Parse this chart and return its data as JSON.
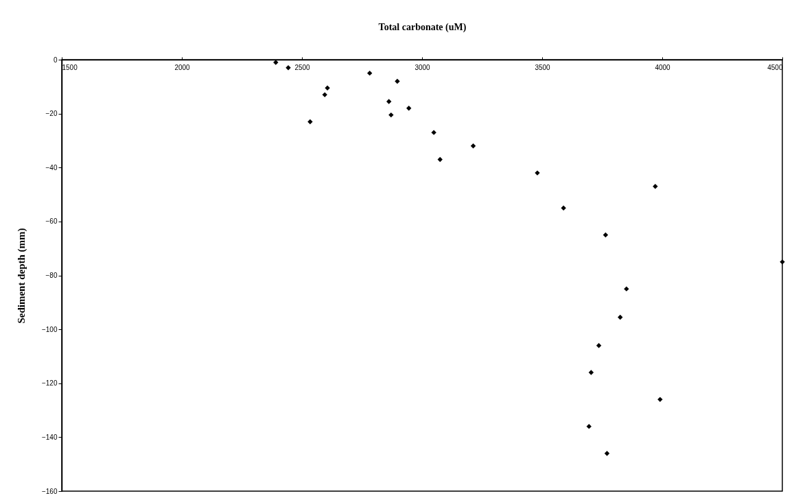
{
  "chart_data": {
    "type": "scatter",
    "xlabel": "Total carbonate (uM)",
    "ylabel": "Sediment depth (mm)",
    "x": [
      2391,
      2443,
      2534,
      2595,
      2606,
      2782,
      2862,
      2871,
      2897,
      2945,
      3049,
      3075,
      3213,
      3480,
      3971,
      3589,
      3764,
      4500,
      3851,
      3825,
      3736,
      3704,
      3991,
      3695,
      3770
    ],
    "series": [
      {
        "color": "#000000",
        "values": [
          -1,
          -3,
          -23,
          -13,
          -10.5,
          -5,
          -15.5,
          -20.5,
          -8,
          -18,
          -27,
          -37,
          -32,
          -42,
          -47,
          -55,
          -65,
          -75,
          -85,
          -95.5,
          -106,
          -116,
          -126,
          -136,
          -146
        ]
      }
    ],
    "xlim": [
      1500,
      4500
    ],
    "xticks": [
      1500,
      2000,
      2500,
      3000,
      3500,
      4000,
      4500
    ],
    "ylim": [
      -160,
      0
    ],
    "yticks": [
      -160,
      -140,
      -120,
      -100,
      -80,
      -60,
      -40,
      -20,
      0
    ],
    "marker": "diamond",
    "grid": false
  }
}
